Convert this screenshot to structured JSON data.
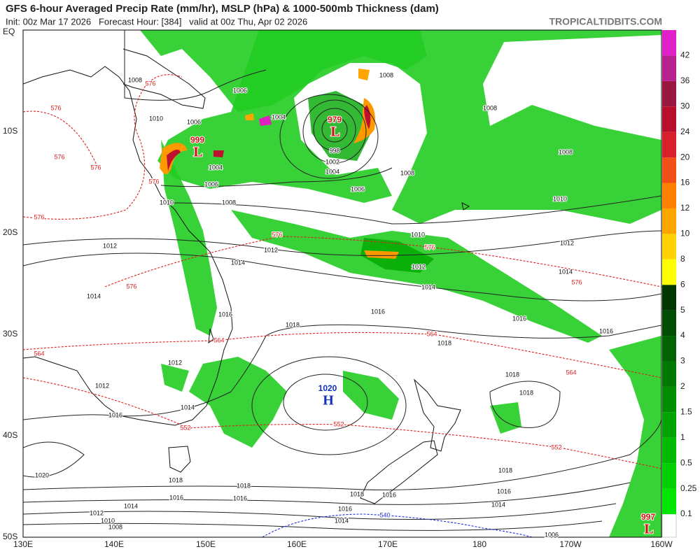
{
  "header": {
    "title": "GFS 6-hour Averaged Precip Rate (mm/hr), MSLP (hPa) & 1000-500mb Thickness (dam)",
    "subtitle": "Init: 00z Mar 17 2026   Forecast Hour: [384]   valid at 00z Thu, Apr 02 2026",
    "source": "TROPICALTIDBITS.COM"
  },
  "map": {
    "lat_labels": [
      "EQ",
      "10S",
      "20S",
      "30S",
      "40S",
      "50S"
    ],
    "lon_labels": [
      "130E",
      "140E",
      "150E",
      "160E",
      "170E",
      "180",
      "170W",
      "160W"
    ],
    "pressure_centers": [
      {
        "symbol": "L",
        "value": "979",
        "color": "#d01010"
      },
      {
        "symbol": "L",
        "value": "999",
        "color": "#d01010"
      },
      {
        "symbol": "H",
        "value": "1020",
        "color": "#1030c0"
      },
      {
        "symbol": "L",
        "value": "997",
        "color": "#d01010"
      }
    ],
    "isobar_labels": [
      "1008",
      "1006",
      "1004",
      "1008",
      "1008",
      "1008",
      "1010",
      "1006",
      "1004",
      "1002",
      "1004",
      "998",
      "1008",
      "1006",
      "1006",
      "1010",
      "1008",
      "1010",
      "1012",
      "1012",
      "1010",
      "1012",
      "1014",
      "1012",
      "1014",
      "1014",
      "1016",
      "1016",
      "1016",
      "1014",
      "1016",
      "1018",
      "1018",
      "1012",
      "1012",
      "1014",
      "1016",
      "1018",
      "1018",
      "1020",
      "1018",
      "1018",
      "1016",
      "1016",
      "1018",
      "1016",
      "1014",
      "1012",
      "1010",
      "1008",
      "1016",
      "1014",
      "1018",
      "1016",
      "1014",
      "1006"
    ],
    "thickness_labels": [
      "576",
      "576",
      "576",
      "576",
      "576",
      "576",
      "576",
      "576",
      "576",
      "576",
      "564",
      "564",
      "564",
      "564",
      "552",
      "552",
      "552",
      "540"
    ]
  },
  "colorbar": {
    "labels": [
      "0.1",
      "0.25",
      "0.5",
      "1",
      "1.5",
      "2",
      "3",
      "4",
      "5",
      "6",
      "8",
      "10",
      "12",
      "16",
      "20",
      "24",
      "30",
      "36",
      "42"
    ],
    "colors": [
      "#00e600",
      "#00d000",
      "#00ba00",
      "#00a400",
      "#008e00",
      "#007800",
      "#006200",
      "#004c00",
      "#003600",
      "#ffff00",
      "#ffd200",
      "#ffa500",
      "#ff7f00",
      "#f05018",
      "#d8202c",
      "#b8102c",
      "#981840",
      "#b82090",
      "#e020c8"
    ],
    "top_color": "#ff10ff"
  }
}
